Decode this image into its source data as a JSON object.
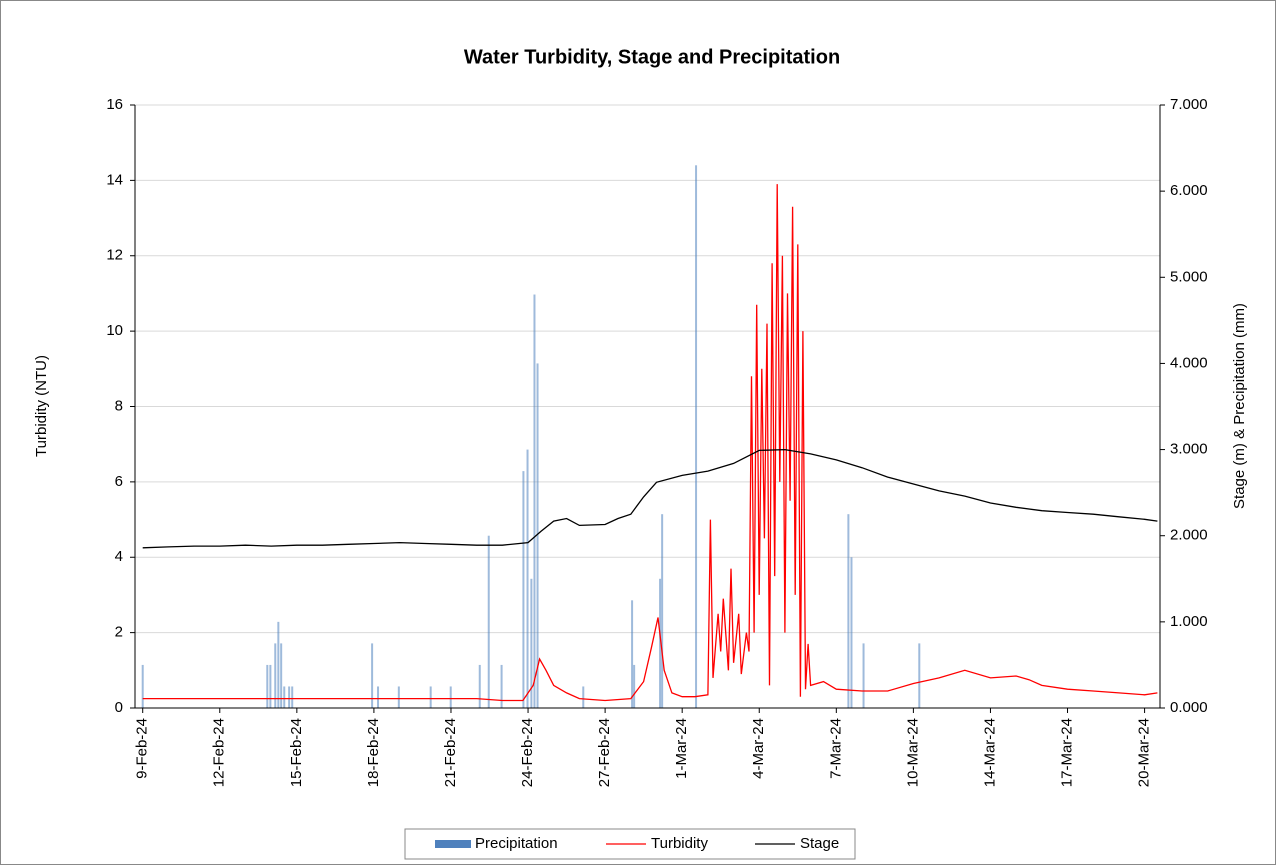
{
  "chart_data": {
    "type": "combo",
    "title": "Water Turbidity, Stage and Precipitation",
    "y_label": "Turbidity (NTU)",
    "y2_label": "Stage (m) & Precipitation (mm)",
    "xlim": [
      -0.3,
      39.6
    ],
    "xticks": [
      {
        "value": 0,
        "label": "9-Feb-24"
      },
      {
        "value": 3,
        "label": "12-Feb-24"
      },
      {
        "value": 6,
        "label": "15-Feb-24"
      },
      {
        "value": 9,
        "label": "18-Feb-24"
      },
      {
        "value": 12,
        "label": "21-Feb-24"
      },
      {
        "value": 15,
        "label": "24-Feb-24"
      },
      {
        "value": 18,
        "label": "27-Feb-24"
      },
      {
        "value": 21,
        "label": "1-Mar-24"
      },
      {
        "value": 24,
        "label": "4-Mar-24"
      },
      {
        "value": 27,
        "label": "7-Mar-24"
      },
      {
        "value": 30,
        "label": "10-Mar-24"
      },
      {
        "value": 33,
        "label": "14-Mar-24"
      },
      {
        "value": 36,
        "label": "17-Mar-24"
      },
      {
        "value": 39,
        "label": "20-Mar-24"
      }
    ],
    "ylim": [
      0,
      16
    ],
    "yticks": [
      0,
      2,
      4,
      6,
      8,
      10,
      12,
      14,
      16
    ],
    "y2lim": [
      0,
      7
    ],
    "y2ticks": [
      {
        "value": 0,
        "label": "0.000"
      },
      {
        "value": 1,
        "label": "1.000"
      },
      {
        "value": 2,
        "label": "2.000"
      },
      {
        "value": 3,
        "label": "3.000"
      },
      {
        "value": 4,
        "label": "4.000"
      },
      {
        "value": 5,
        "label": "5.000"
      },
      {
        "value": 6,
        "label": "6.000"
      },
      {
        "value": 7,
        "label": "7.000"
      }
    ],
    "grid": true,
    "series": [
      {
        "name": "Precipitation",
        "type": "bar",
        "axis": "y2",
        "color": "#4f81bd",
        "x": [
          0,
          4.85,
          4.97,
          5.16,
          5.28,
          5.39,
          5.51,
          5.7,
          5.82,
          8.93,
          9.16,
          9.97,
          11.21,
          11.99,
          13.12,
          13.47,
          13.97,
          14.82,
          14.98,
          15.13,
          15.25,
          15.37,
          17.15,
          19.05,
          19.13,
          20.14,
          20.22,
          21.54,
          27.47,
          27.59,
          28.06,
          30.23
        ],
        "values": [
          0.5,
          0.5,
          0.5,
          0.75,
          1.0,
          0.75,
          0.25,
          0.25,
          0.25,
          0.75,
          0.25,
          0.25,
          0.25,
          0.25,
          0.5,
          2.0,
          0.5,
          2.75,
          3.0,
          1.5,
          4.8,
          4.0,
          0.25,
          1.25,
          0.5,
          1.5,
          2.25,
          6.3,
          2.25,
          1.75,
          0.75,
          0.75
        ]
      },
      {
        "name": "Turbidity",
        "type": "line",
        "axis": "y",
        "color": "#ff0000",
        "x": [
          0,
          1,
          2,
          3,
          4,
          5,
          6,
          7,
          8,
          9,
          10,
          11,
          12,
          13,
          14,
          14.8,
          15.2,
          15.45,
          15.7,
          16,
          16.5,
          17,
          18,
          19,
          19.5,
          19.8,
          20.06,
          20.3,
          20.6,
          21,
          21.5,
          22,
          22.1,
          22.2,
          22.4,
          22.5,
          22.6,
          22.8,
          22.9,
          23,
          23.2,
          23.3,
          23.5,
          23.6,
          23.7,
          23.8,
          23.9,
          24,
          24.1,
          24.2,
          24.3,
          24.4,
          24.5,
          24.6,
          24.7,
          24.8,
          24.9,
          25,
          25.1,
          25.2,
          25.3,
          25.4,
          25.5,
          25.6,
          25.7,
          25.8,
          25.9,
          26,
          26.5,
          27,
          28,
          29,
          30,
          31,
          32,
          33,
          34,
          34.5,
          35,
          36,
          37,
          38,
          39,
          39.5
        ],
        "values": [
          0.25,
          0.25,
          0.25,
          0.25,
          0.25,
          0.25,
          0.25,
          0.25,
          0.25,
          0.25,
          0.25,
          0.25,
          0.25,
          0.25,
          0.2,
          0.2,
          0.6,
          1.3,
          1.0,
          0.6,
          0.4,
          0.25,
          0.2,
          0.25,
          0.7,
          1.6,
          2.4,
          1.0,
          0.4,
          0.3,
          0.3,
          0.35,
          5.0,
          0.8,
          2.5,
          1.5,
          2.9,
          1.0,
          3.7,
          1.2,
          2.5,
          0.9,
          2.0,
          1.5,
          8.8,
          2.0,
          10.7,
          3.0,
          9.0,
          4.5,
          10.2,
          0.6,
          11.8,
          3.5,
          13.9,
          6.0,
          12.0,
          2.0,
          11.0,
          5.5,
          13.3,
          3.0,
          12.3,
          0.3,
          10.0,
          0.5,
          1.7,
          0.6,
          0.7,
          0.5,
          0.45,
          0.45,
          0.65,
          0.8,
          1.0,
          0.8,
          0.85,
          0.75,
          0.6,
          0.5,
          0.45,
          0.4,
          0.35,
          0.4
        ]
      },
      {
        "name": "Stage",
        "type": "line",
        "axis": "y2",
        "color": "#000000",
        "x": [
          0,
          1,
          2,
          3,
          4,
          5,
          6,
          7,
          8,
          9,
          10,
          11,
          12,
          13,
          14,
          15,
          15.5,
          16,
          16.5,
          17,
          18,
          18.5,
          19,
          19.5,
          20,
          21,
          22,
          23,
          24,
          25,
          26,
          27,
          28,
          29,
          30,
          31,
          32,
          33,
          34,
          35,
          36,
          37,
          38,
          39,
          39.5
        ],
        "values": [
          1.86,
          1.87,
          1.88,
          1.88,
          1.89,
          1.88,
          1.89,
          1.89,
          1.9,
          1.91,
          1.92,
          1.91,
          1.9,
          1.89,
          1.89,
          1.92,
          2.05,
          2.17,
          2.2,
          2.12,
          2.13,
          2.2,
          2.25,
          2.45,
          2.62,
          2.7,
          2.75,
          2.84,
          2.99,
          3.0,
          2.95,
          2.88,
          2.79,
          2.68,
          2.6,
          2.52,
          2.46,
          2.38,
          2.33,
          2.29,
          2.27,
          2.25,
          2.22,
          2.19,
          2.17
        ]
      }
    ]
  }
}
